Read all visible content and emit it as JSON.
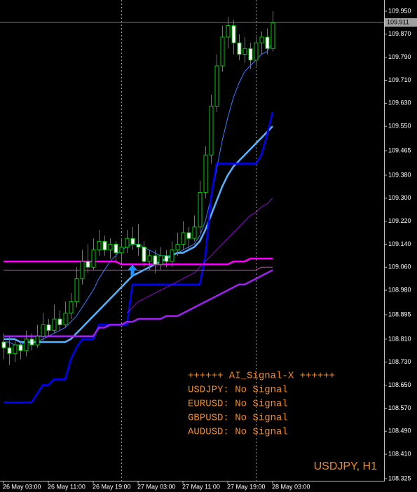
{
  "chart_data": {
    "type": "candlestick",
    "symbol_label": "USDJPY, H1",
    "categories": [
      "26 May 03:00",
      null,
      null,
      null,
      null,
      null,
      null,
      null,
      "26 May 11:00",
      null,
      null,
      null,
      null,
      null,
      null,
      null,
      "26 May 19:00",
      null,
      null,
      null,
      null,
      null,
      null,
      null,
      "27 May 03:00",
      null,
      null,
      null,
      null,
      null,
      null,
      null,
      "27 May 11:00",
      null,
      null,
      null,
      null,
      null,
      null,
      null,
      "27 May 19:00",
      null,
      null,
      null,
      null,
      null,
      null,
      null,
      "28 May 03:00"
    ],
    "open": [
      108.8,
      108.78,
      108.76,
      108.79,
      108.77,
      108.81,
      108.79,
      108.82,
      108.86,
      108.84,
      108.88,
      108.86,
      108.9,
      108.94,
      109.02,
      109.08,
      109.06,
      109.12,
      109.15,
      109.12,
      109.14,
      109.11,
      109.13,
      109.16,
      109.14,
      109.13,
      109.08,
      109.1,
      109.07,
      109.1,
      109.08,
      109.12,
      109.14,
      109.18,
      109.16,
      109.2,
      109.32,
      109.45,
      109.62,
      109.76,
      109.86,
      109.9,
      109.84,
      109.8,
      109.82,
      109.78,
      109.84,
      109.86,
      109.82
    ],
    "high": [
      108.83,
      108.82,
      108.81,
      108.8,
      108.84,
      108.83,
      108.86,
      108.9,
      108.88,
      108.93,
      108.91,
      108.94,
      108.97,
      109.06,
      109.12,
      109.14,
      109.16,
      109.19,
      109.17,
      109.16,
      109.15,
      109.16,
      109.19,
      109.2,
      109.21,
      109.15,
      109.12,
      109.12,
      109.13,
      109.12,
      109.15,
      109.18,
      109.22,
      109.2,
      109.24,
      109.36,
      109.48,
      109.66,
      109.8,
      109.9,
      109.93,
      109.92,
      109.87,
      109.86,
      109.84,
      109.86,
      109.88,
      109.89,
      109.95
    ],
    "low": [
      108.74,
      108.72,
      108.73,
      108.74,
      108.75,
      108.77,
      108.78,
      108.8,
      108.82,
      108.83,
      108.84,
      108.85,
      108.88,
      108.92,
      109.0,
      109.04,
      109.05,
      109.1,
      109.1,
      109.09,
      109.08,
      109.07,
      109.11,
      109.12,
      109.1,
      109.06,
      109.05,
      109.04,
      109.05,
      109.06,
      109.06,
      109.1,
      109.12,
      109.12,
      109.15,
      109.18,
      109.3,
      109.42,
      109.6,
      109.74,
      109.82,
      109.8,
      109.78,
      109.77,
      109.75,
      109.76,
      109.8,
      109.8,
      109.81
    ],
    "close": [
      108.78,
      108.76,
      108.79,
      108.77,
      108.81,
      108.79,
      108.82,
      108.86,
      108.84,
      108.88,
      108.86,
      108.9,
      108.94,
      109.02,
      109.08,
      109.06,
      109.12,
      109.15,
      109.12,
      109.14,
      109.11,
      109.13,
      109.16,
      109.14,
      109.13,
      109.08,
      109.1,
      109.07,
      109.1,
      109.08,
      109.12,
      109.14,
      109.18,
      109.16,
      109.2,
      109.32,
      109.45,
      109.62,
      109.76,
      109.86,
      109.9,
      109.84,
      109.8,
      109.82,
      109.78,
      109.84,
      109.86,
      109.82,
      109.91
    ],
    "candle_color": "#00c800",
    "overlays": [
      {
        "color": "#3a7bff",
        "width": 1,
        "values": [
          108.8,
          108.8,
          108.79,
          108.79,
          108.8,
          108.8,
          108.8,
          108.81,
          108.82,
          108.83,
          108.84,
          108.85,
          108.87,
          108.89,
          108.92,
          108.95,
          108.98,
          109.02,
          109.05,
          109.08,
          109.1,
          109.12,
          109.13,
          109.14,
          109.14,
          109.13,
          109.12,
          109.11,
          109.1,
          109.1,
          109.1,
          109.11,
          109.12,
          109.13,
          109.14,
          109.17,
          109.22,
          109.3,
          109.4,
          109.5,
          109.58,
          109.65,
          109.7,
          109.74,
          109.76,
          109.78,
          109.8,
          109.81,
          109.84
        ]
      },
      {
        "color": "#56b4ff",
        "width": 2.5,
        "values": [
          108.81,
          108.81,
          108.81,
          108.8,
          108.8,
          108.8,
          108.8,
          108.8,
          108.8,
          108.8,
          108.8,
          108.8,
          108.81,
          108.83,
          108.85,
          108.87,
          108.89,
          108.91,
          108.93,
          108.95,
          108.97,
          108.99,
          109.01,
          109.03,
          109.04,
          109.05,
          109.06,
          109.07,
          109.08,
          109.09,
          109.1,
          109.11,
          109.11,
          109.12,
          109.13,
          109.15,
          109.19,
          109.24,
          109.29,
          109.34,
          109.38,
          109.41,
          109.43,
          109.45,
          109.47,
          109.49,
          109.51,
          109.53,
          109.55
        ]
      },
      {
        "color": "#0000ff",
        "width": 2.5,
        "values": [
          108.59,
          108.59,
          108.59,
          108.59,
          108.59,
          108.59,
          108.62,
          108.65,
          108.65,
          108.67,
          108.67,
          108.67,
          108.74,
          108.78,
          108.81,
          108.81,
          108.81,
          108.86,
          108.86,
          108.86,
          108.86,
          108.86,
          108.86,
          109.0,
          109.0,
          109.0,
          109.0,
          109.0,
          109.0,
          109.0,
          109.0,
          109.0,
          109.0,
          109.0,
          109.0,
          109.0,
          109.1,
          109.3,
          109.42,
          109.42,
          109.42,
          109.42,
          109.42,
          109.42,
          109.42,
          109.42,
          109.45,
          109.52,
          109.6
        ]
      },
      {
        "color": "#ff00ff",
        "width": 2.5,
        "values": [
          109.08,
          109.08,
          109.08,
          109.08,
          109.08,
          109.08,
          109.08,
          109.08,
          109.08,
          109.08,
          109.08,
          109.08,
          109.08,
          109.08,
          109.08,
          109.08,
          109.08,
          109.08,
          109.08,
          109.08,
          109.08,
          109.07,
          109.07,
          109.07,
          109.07,
          109.07,
          109.07,
          109.07,
          109.07,
          109.07,
          109.07,
          109.07,
          109.07,
          109.07,
          109.07,
          109.07,
          109.07,
          109.07,
          109.07,
          109.07,
          109.07,
          109.08,
          109.08,
          109.08,
          109.09,
          109.09,
          109.09,
          109.09,
          109.09
        ]
      },
      {
        "color": "#d040d0",
        "width": 1,
        "values": [
          109.05,
          109.05,
          109.05,
          109.05,
          109.05,
          109.05,
          109.05,
          109.05,
          109.05,
          109.05,
          109.05,
          109.05,
          109.05,
          109.05,
          109.05,
          109.05,
          109.05,
          109.05,
          109.05,
          109.05,
          109.05,
          109.05,
          109.05,
          109.05,
          109.05,
          109.05,
          109.05,
          109.05,
          109.05,
          109.05,
          109.05,
          109.05,
          109.05,
          109.05,
          109.05,
          109.05,
          109.05,
          109.05,
          109.05,
          109.05,
          109.05,
          109.05,
          109.05,
          109.05,
          109.05,
          109.05,
          109.06,
          109.06,
          109.06
        ]
      },
      {
        "color": "#a020f0",
        "width": 2.5,
        "values": [
          108.82,
          108.82,
          108.82,
          108.82,
          108.82,
          108.82,
          108.82,
          108.82,
          108.82,
          108.82,
          108.82,
          108.82,
          108.82,
          108.82,
          108.82,
          108.82,
          108.82,
          108.85,
          108.85,
          108.86,
          108.86,
          108.86,
          108.87,
          108.87,
          108.88,
          108.88,
          108.88,
          108.88,
          108.88,
          108.89,
          108.89,
          108.89,
          108.9,
          108.91,
          108.92,
          108.93,
          108.94,
          108.95,
          108.96,
          108.97,
          108.98,
          108.99,
          109.0,
          109.0,
          109.01,
          109.02,
          109.03,
          109.04,
          109.05
        ]
      },
      {
        "color": "#9400d3",
        "width": 1,
        "values": [
          null,
          null,
          null,
          null,
          null,
          null,
          null,
          null,
          null,
          null,
          null,
          null,
          null,
          null,
          null,
          null,
          null,
          null,
          null,
          null,
          null,
          null,
          108.9,
          108.92,
          108.94,
          108.95,
          108.96,
          108.97,
          108.98,
          108.99,
          109.0,
          109.01,
          109.02,
          109.03,
          109.04,
          109.06,
          109.08,
          109.1,
          109.12,
          109.14,
          109.16,
          109.18,
          109.2,
          109.22,
          109.24,
          109.25,
          109.27,
          109.28,
          109.3
        ]
      }
    ],
    "buy_arrow": {
      "index": 23,
      "price": 109.03,
      "color": "#1e90ff"
    },
    "current_price": {
      "value": 109.911,
      "label": "109.911"
    },
    "ylim": [
      108.32,
      109.989
    ],
    "yticks": [
      {
        "value": 109.95,
        "label": "109.950"
      },
      {
        "value": 109.87,
        "label": "109.870"
      },
      {
        "value": 109.79,
        "label": "109.790"
      },
      {
        "value": 109.71,
        "label": "109.710"
      },
      {
        "value": 109.63,
        "label": "109.630"
      },
      {
        "value": 109.55,
        "label": "109.550"
      },
      {
        "value": 109.465,
        "label": "109.465"
      },
      {
        "value": 109.38,
        "label": "109.380"
      },
      {
        "value": 109.3,
        "label": "109.300"
      },
      {
        "value": 109.22,
        "label": "109.220"
      },
      {
        "value": 109.14,
        "label": "109.140"
      },
      {
        "value": 109.06,
        "label": "109.060"
      },
      {
        "value": 108.98,
        "label": "108.980"
      },
      {
        "value": 108.895,
        "label": "108.895"
      },
      {
        "value": 108.81,
        "label": "108.810"
      },
      {
        "value": 108.73,
        "label": "108.730"
      },
      {
        "value": 108.65,
        "label": "108.650"
      },
      {
        "value": 108.57,
        "label": "108.570"
      },
      {
        "value": 108.49,
        "label": "108.490"
      },
      {
        "value": 108.41,
        "label": "108.410"
      },
      {
        "value": 108.325,
        "label": "108.325"
      }
    ],
    "signal_panel": [
      "++++++ AI_Signal-X ++++++",
      "USDJPY: No Signal",
      "EURUSD: No Signal",
      "GBPUSD: No Signal",
      "AUDUSD: No Signal"
    ]
  }
}
